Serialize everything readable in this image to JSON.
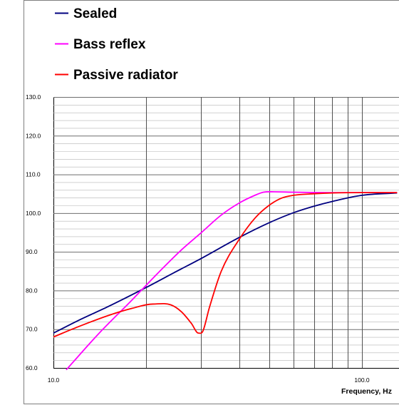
{
  "chart_data": {
    "type": "line",
    "title": "",
    "xlabel": "Frequency, Hz",
    "ylabel": "",
    "x_scale": "log",
    "xlim": [
      10,
      130
    ],
    "ylim": [
      60,
      130
    ],
    "grid": true,
    "legend_position": "top-left",
    "x_tick_labels": [
      "10.0",
      "100.0"
    ],
    "y_tick_labels": [
      "60.0",
      "70.0",
      "80.0",
      "90.0",
      "100.0",
      "110.0",
      "120.0",
      "130.0"
    ],
    "series": [
      {
        "name": "Sealed",
        "color": "#000080",
        "points": [
          [
            10,
            69.0
          ],
          [
            12,
            72.2
          ],
          [
            15,
            75.8
          ],
          [
            20,
            80.8
          ],
          [
            25,
            84.9
          ],
          [
            30,
            88.2
          ],
          [
            40,
            93.7
          ],
          [
            50,
            97.5
          ],
          [
            60,
            100.1
          ],
          [
            70,
            101.8
          ],
          [
            80,
            103.0
          ],
          [
            100,
            104.6
          ],
          [
            130,
            105.2
          ]
        ]
      },
      {
        "name": "Bass reflex",
        "color": "#ff00ff",
        "points": [
          [
            11,
            59.5
          ],
          [
            14,
            68.8
          ],
          [
            18,
            77.6
          ],
          [
            22,
            84.8
          ],
          [
            26,
            90.5
          ],
          [
            30,
            94.8
          ],
          [
            35,
            99.5
          ],
          [
            40,
            102.6
          ],
          [
            45,
            104.6
          ],
          [
            48,
            105.4
          ],
          [
            52,
            105.5
          ],
          [
            60,
            105.4
          ],
          [
            80,
            105.3
          ],
          [
            100,
            105.3
          ],
          [
            130,
            105.3
          ]
        ]
      },
      {
        "name": "Passive radiator",
        "color": "#ff0000",
        "points": [
          [
            10,
            68.0
          ],
          [
            12,
            70.6
          ],
          [
            15,
            73.5
          ],
          [
            18,
            75.4
          ],
          [
            21,
            76.5
          ],
          [
            24,
            76.3
          ],
          [
            26,
            74.5
          ],
          [
            28,
            71.5
          ],
          [
            29.5,
            69.0
          ],
          [
            30.5,
            69.5
          ],
          [
            32,
            75.5
          ],
          [
            35,
            85.0
          ],
          [
            40,
            93.2
          ],
          [
            45,
            98.7
          ],
          [
            50,
            102.0
          ],
          [
            55,
            103.9
          ],
          [
            60,
            104.6
          ],
          [
            70,
            105.0
          ],
          [
            80,
            105.2
          ],
          [
            100,
            105.3
          ],
          [
            130,
            105.3
          ]
        ]
      }
    ]
  }
}
